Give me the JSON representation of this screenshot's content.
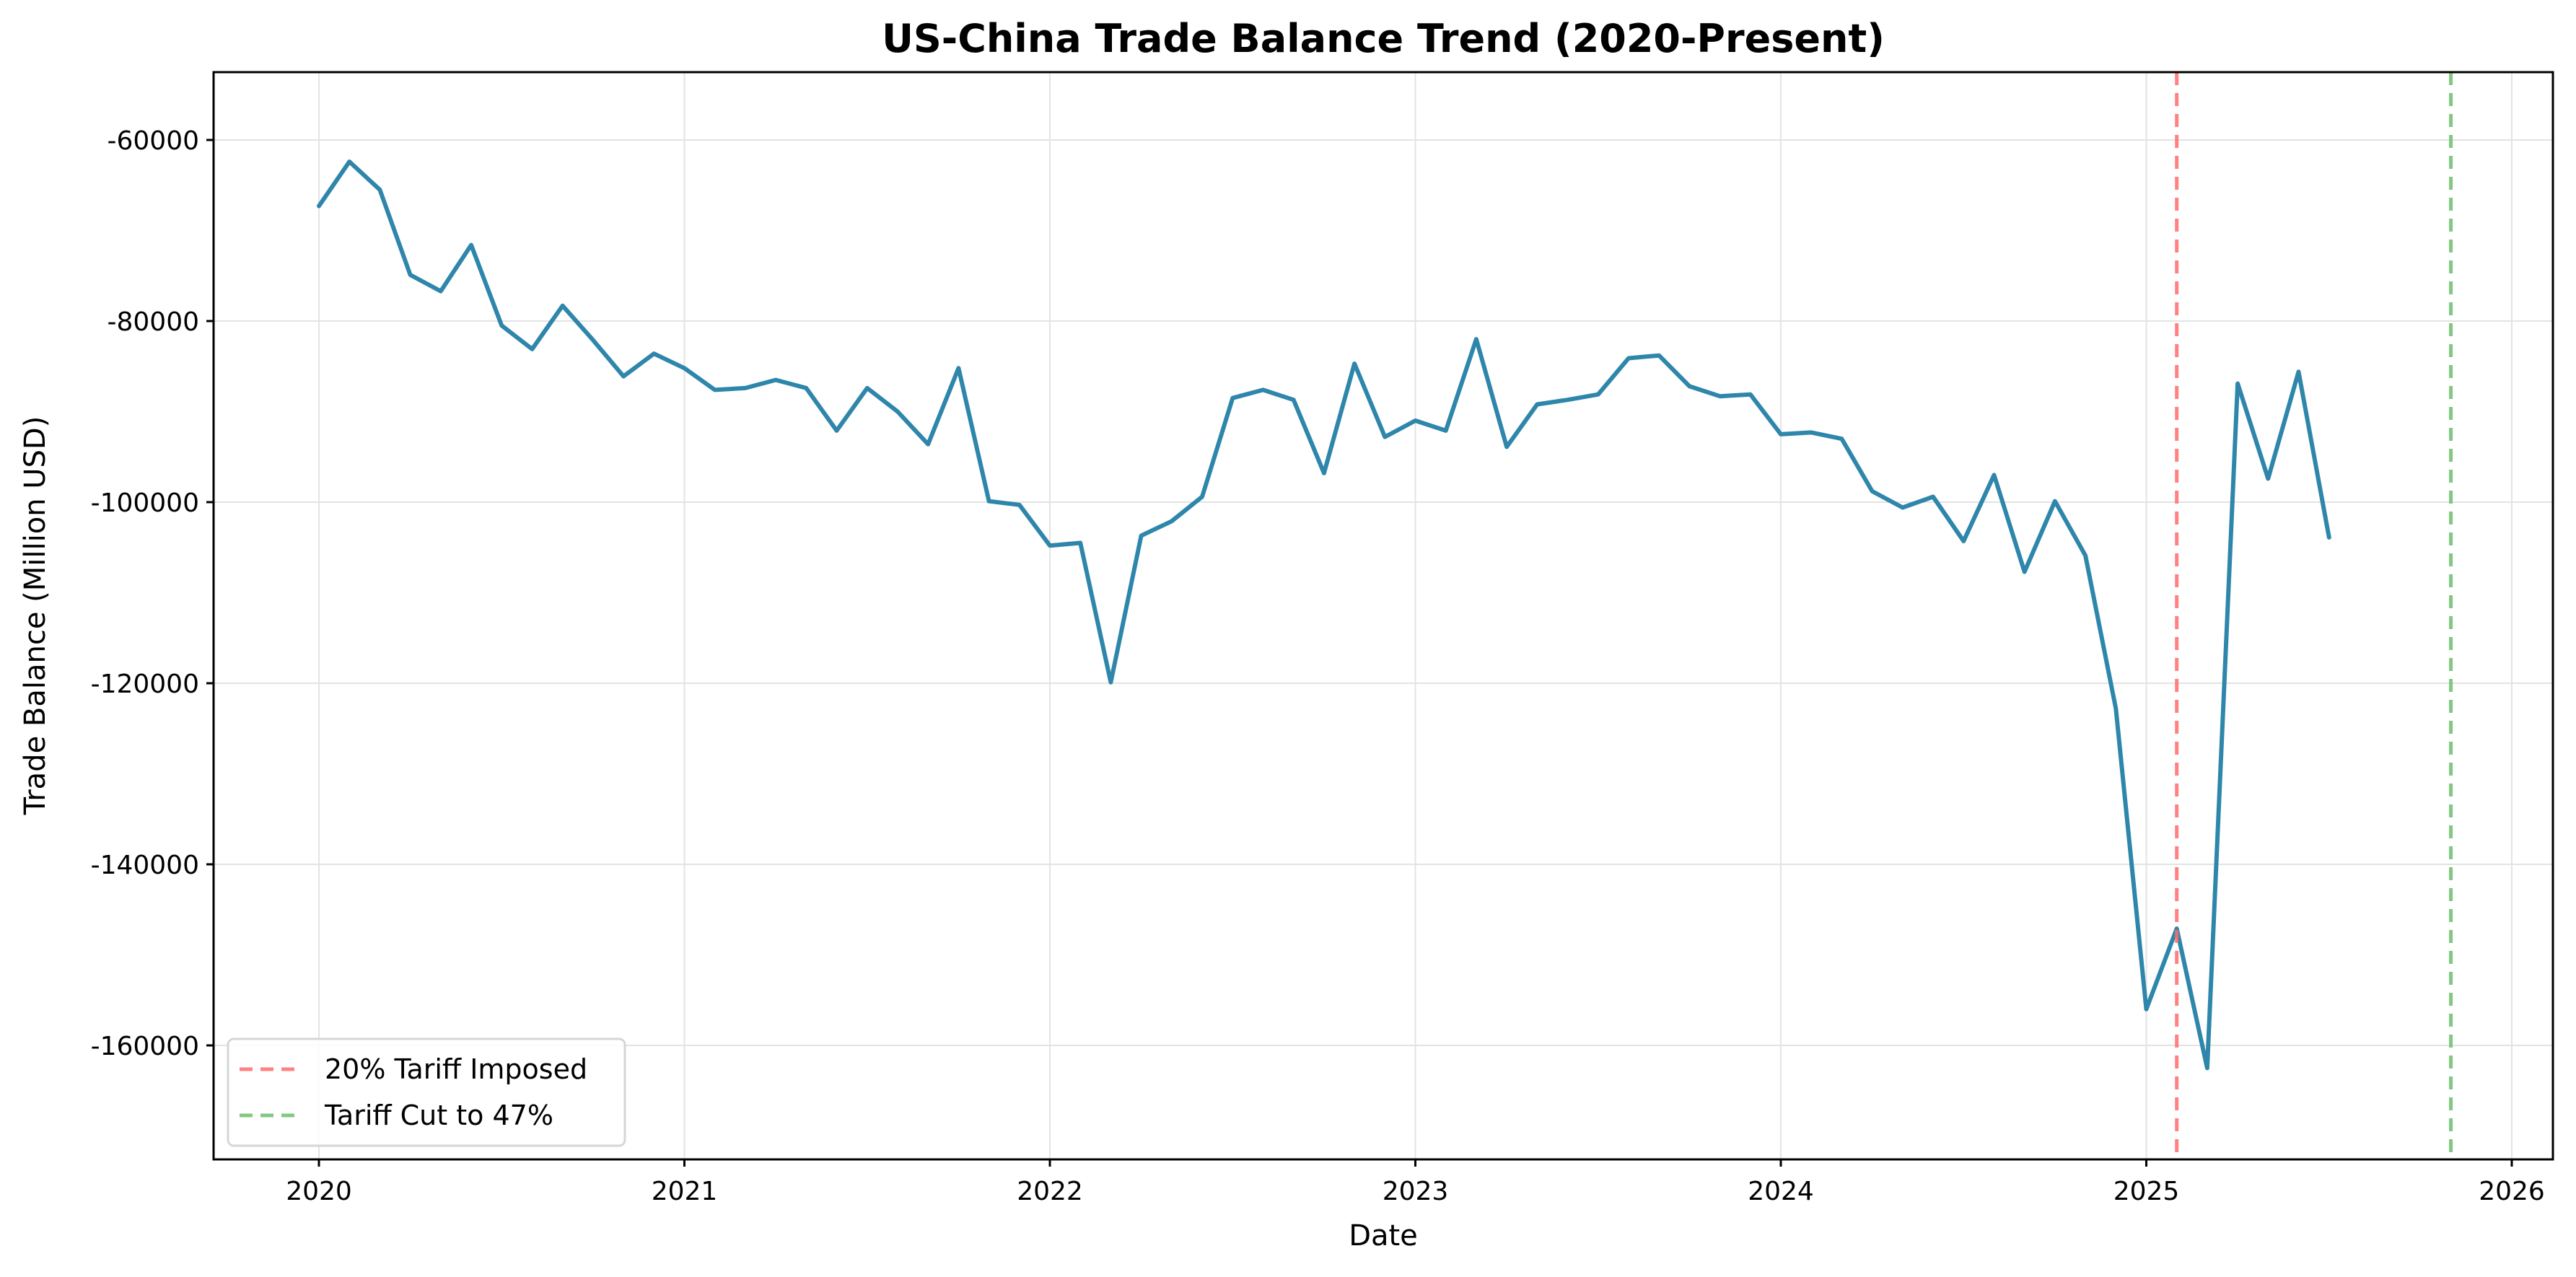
{
  "chart_data": {
    "type": "line",
    "title": "US-China Trade Balance Trend (2020-Present)",
    "xlabel": "Date",
    "ylabel": "Trade Balance (Million USD)",
    "x_tick_labels": [
      "2020",
      "2021",
      "2022",
      "2023",
      "2024",
      "2025",
      "2026"
    ],
    "y_tick_labels": [
      "-60000",
      "-80000",
      "-100000",
      "-120000",
      "-140000",
      "-160000"
    ],
    "ylim": [
      -173000,
      -53000
    ],
    "xlim": [
      "2019-09",
      "2026-02"
    ],
    "grid": true,
    "legend_position": "lower left",
    "series": [
      {
        "name": "Trade Balance",
        "color": "#2e86ab",
        "x": [
          "2020-01",
          "2020-02",
          "2020-03",
          "2020-04",
          "2020-05",
          "2020-06",
          "2020-07",
          "2020-08",
          "2020-09",
          "2020-10",
          "2020-11",
          "2020-12",
          "2021-01",
          "2021-02",
          "2021-03",
          "2021-04",
          "2021-05",
          "2021-06",
          "2021-07",
          "2021-08",
          "2021-09",
          "2021-10",
          "2021-11",
          "2021-12",
          "2022-01",
          "2022-02",
          "2022-03",
          "2022-04",
          "2022-05",
          "2022-06",
          "2022-07",
          "2022-08",
          "2022-09",
          "2022-10",
          "2022-11",
          "2022-12",
          "2023-01",
          "2023-02",
          "2023-03",
          "2023-04",
          "2023-05",
          "2023-06",
          "2023-07",
          "2023-08",
          "2023-09",
          "2023-10",
          "2023-11",
          "2023-12",
          "2024-01",
          "2024-02",
          "2024-03",
          "2024-04",
          "2024-05",
          "2024-06",
          "2024-07",
          "2024-08",
          "2024-09",
          "2024-10",
          "2024-11",
          "2024-12",
          "2025-01",
          "2025-02",
          "2025-03",
          "2025-04",
          "2025-05",
          "2025-06",
          "2025-07"
        ],
        "values": [
          -67300,
          -62400,
          -65500,
          -74900,
          -76700,
          -71600,
          -80500,
          -83100,
          -78300,
          -82100,
          -86100,
          -83600,
          -85200,
          -87600,
          -87400,
          -86500,
          -87400,
          -92100,
          -87400,
          -90000,
          -93600,
          -85200,
          -99900,
          -100300,
          -104800,
          -104500,
          -119900,
          -103700,
          -102100,
          -99400,
          -88500,
          -87600,
          -88700,
          -96800,
          -84700,
          -92800,
          -91000,
          -92100,
          -82000,
          -93900,
          -89200,
          -88700,
          -88100,
          -84100,
          -83800,
          -87200,
          -88300,
          -88100,
          -92500,
          -92300,
          -93000,
          -98800,
          -100600,
          -99400,
          -104300,
          -97000,
          -107700,
          -99900,
          -105900,
          -122800,
          -156000,
          -147100,
          -162500,
          -86900,
          -97400,
          -85600,
          -103900
        ]
      }
    ],
    "annotations": [
      {
        "type": "vline",
        "label": "20% Tariff Imposed",
        "x": "2025-02",
        "color": "#ff6b6b",
        "style": "dashed"
      },
      {
        "type": "vline",
        "label": "Tariff Cut to 47%",
        "x": "2025-11",
        "color": "#6bbf6b",
        "style": "dashed"
      }
    ]
  }
}
